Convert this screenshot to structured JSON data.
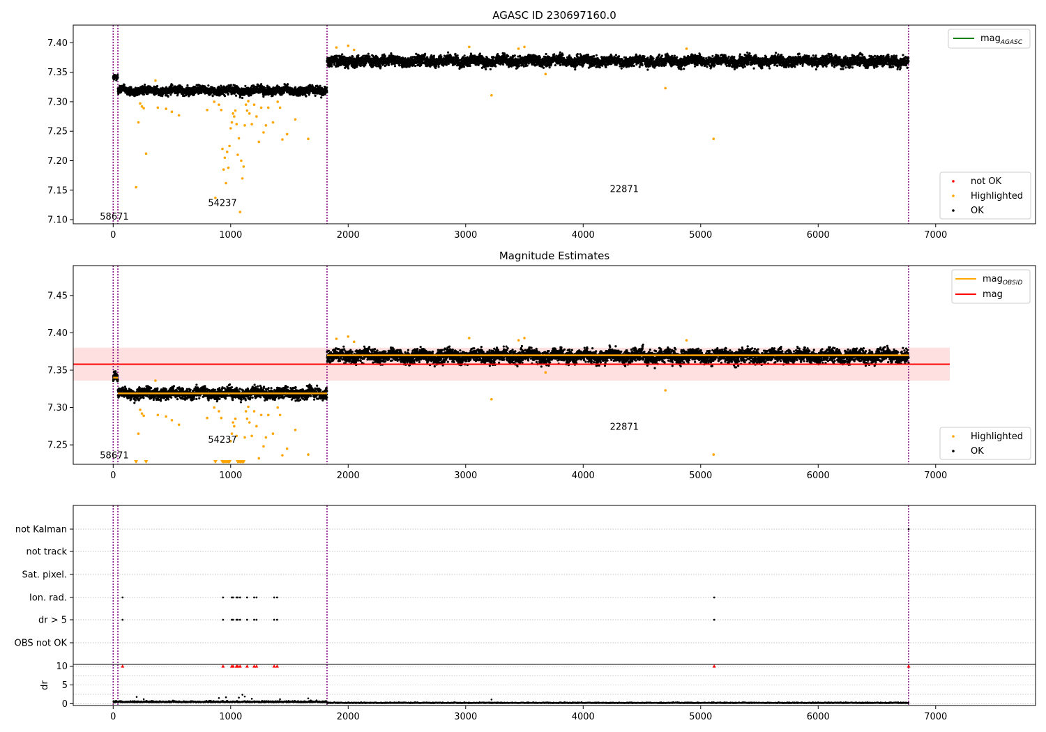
{
  "colors": {
    "ok": "#000000",
    "highlighted": "#ffa500",
    "not_ok": "#ff0000",
    "mag_agasc": "#008000",
    "mag_obsid": "#ffa500",
    "mag": "#ff0000",
    "mag_band": "#ffe0e0",
    "obsid_line": "#800080",
    "grid": "#b0b0b0"
  },
  "chart_data": [
    {
      "type": "scatter",
      "title": "AGASC ID 230697160.0",
      "xlabel": "",
      "ylabel": "",
      "xlim": [
        -340,
        7850
      ],
      "ylim": [
        7.093,
        7.43
      ],
      "xticks": [
        0,
        1000,
        2000,
        3000,
        4000,
        5000,
        6000,
        7000
      ],
      "yticks": [
        7.1,
        7.15,
        7.2,
        7.25,
        7.3,
        7.35,
        7.4
      ],
      "ytick_labels": [
        "7.10",
        "7.15",
        "7.20",
        "7.25",
        "7.30",
        "7.35",
        "7.40"
      ],
      "obsid_boundaries": [
        0,
        40,
        1820,
        6770
      ],
      "obsid_labels": [
        {
          "text": "58671",
          "x": 10,
          "y": 7.1
        },
        {
          "text": "54237",
          "x": 930,
          "y": 7.123
        },
        {
          "text": "22871",
          "x": 4350,
          "y": 7.147
        }
      ],
      "legends": {
        "top_right": [
          {
            "label_main": "mag",
            "label_sub": "AGASC",
            "kind": "line",
            "color_key": "mag_agasc"
          }
        ],
        "bottom_right": [
          {
            "label": "not OK",
            "kind": "dot",
            "color_key": "not_ok"
          },
          {
            "label": "Highlighted",
            "kind": "dot",
            "color_key": "highlighted"
          },
          {
            "label": "OK",
            "kind": "dot",
            "color_key": "ok"
          }
        ]
      },
      "segments": [
        {
          "x": [
            0,
            40
          ],
          "mean": 7.34,
          "spread": 0.004
        },
        {
          "x": [
            40,
            1820
          ],
          "mean": 7.319,
          "spread": 0.005
        },
        {
          "x": [
            1820,
            6770
          ],
          "mean": 7.369,
          "spread": 0.006
        }
      ],
      "highlighted_points": [
        [
          195,
          7.155
        ],
        [
          215,
          7.265
        ],
        [
          230,
          7.297
        ],
        [
          245,
          7.292
        ],
        [
          260,
          7.289
        ],
        [
          280,
          7.212
        ],
        [
          360,
          7.336
        ],
        [
          380,
          7.29
        ],
        [
          450,
          7.288
        ],
        [
          500,
          7.283
        ],
        [
          560,
          7.277
        ],
        [
          800,
          7.286
        ],
        [
          860,
          7.3
        ],
        [
          870,
          7.137
        ],
        [
          900,
          7.295
        ],
        [
          920,
          7.286
        ],
        [
          930,
          7.22
        ],
        [
          940,
          7.185
        ],
        [
          950,
          7.205
        ],
        [
          960,
          7.162
        ],
        [
          970,
          7.215
        ],
        [
          980,
          7.188
        ],
        [
          990,
          7.225
        ],
        [
          1000,
          7.255
        ],
        [
          1010,
          7.265
        ],
        [
          1020,
          7.28
        ],
        [
          1030,
          7.275
        ],
        [
          1040,
          7.285
        ],
        [
          1050,
          7.262
        ],
        [
          1060,
          7.21
        ],
        [
          1070,
          7.238
        ],
        [
          1080,
          7.113
        ],
        [
          1090,
          7.2
        ],
        [
          1100,
          7.17
        ],
        [
          1110,
          7.19
        ],
        [
          1120,
          7.26
        ],
        [
          1130,
          7.295
        ],
        [
          1140,
          7.285
        ],
        [
          1150,
          7.301
        ],
        [
          1160,
          7.28
        ],
        [
          1180,
          7.262
        ],
        [
          1200,
          7.295
        ],
        [
          1220,
          7.275
        ],
        [
          1240,
          7.232
        ],
        [
          1260,
          7.29
        ],
        [
          1280,
          7.248
        ],
        [
          1300,
          7.26
        ],
        [
          1320,
          7.29
        ],
        [
          1360,
          7.265
        ],
        [
          1400,
          7.3
        ],
        [
          1420,
          7.29
        ],
        [
          1440,
          7.236
        ],
        [
          1480,
          7.245
        ],
        [
          1550,
          7.27
        ],
        [
          1660,
          7.237
        ],
        [
          1900,
          7.392
        ],
        [
          2000,
          7.395
        ],
        [
          2050,
          7.388
        ],
        [
          3030,
          7.393
        ],
        [
          3220,
          7.311
        ],
        [
          3450,
          7.39
        ],
        [
          3500,
          7.393
        ],
        [
          3680,
          7.347
        ],
        [
          4700,
          7.323
        ],
        [
          4880,
          7.39
        ],
        [
          5110,
          7.237
        ]
      ],
      "not_ok_points": []
    },
    {
      "type": "scatter",
      "title": "Magnitude Estimates",
      "xlabel": "",
      "ylabel": "",
      "xlim": [
        -340,
        7850
      ],
      "ylim": [
        7.224,
        7.49
      ],
      "xticks": [
        0,
        1000,
        2000,
        3000,
        4000,
        5000,
        6000,
        7000
      ],
      "yticks": [
        7.25,
        7.3,
        7.35,
        7.4,
        7.45
      ],
      "ytick_labels": [
        "7.25",
        "7.30",
        "7.35",
        "7.40",
        "7.45"
      ],
      "obsid_boundaries": [
        0,
        40,
        1820,
        6770
      ],
      "obsid_labels": [
        {
          "text": "58671",
          "x": 10,
          "y": 7.232
        },
        {
          "text": "54237",
          "x": 930,
          "y": 7.253
        },
        {
          "text": "22871",
          "x": 4350,
          "y": 7.27
        }
      ],
      "mag": {
        "value": 7.358,
        "band": [
          7.336,
          7.38
        ],
        "x": [
          -340,
          7120
        ]
      },
      "mag_obsid": [
        {
          "x": [
            0,
            40
          ],
          "value": 7.34
        },
        {
          "x": [
            40,
            1820
          ],
          "value": 7.319
        },
        {
          "x": [
            1820,
            6770
          ],
          "value": 7.37
        }
      ],
      "legends": {
        "top_right": [
          {
            "label_main": "mag",
            "label_sub": "OBSID",
            "kind": "line",
            "color_key": "mag_obsid"
          },
          {
            "label_main": "mag",
            "label_sub": "",
            "kind": "line",
            "color_key": "mag"
          }
        ],
        "bottom_right": [
          {
            "label": "Highlighted",
            "kind": "dot",
            "color_key": "highlighted"
          },
          {
            "label": "OK",
            "kind": "dot",
            "color_key": "ok"
          }
        ]
      },
      "segments": [
        {
          "x": [
            0,
            40
          ],
          "mean": 7.34,
          "spread": 0.004
        },
        {
          "x": [
            40,
            1820
          ],
          "mean": 7.319,
          "spread": 0.005
        },
        {
          "x": [
            1820,
            6770
          ],
          "mean": 7.369,
          "spread": 0.006
        }
      ],
      "highlighted_points": [
        [
          215,
          7.265
        ],
        [
          230,
          7.297
        ],
        [
          245,
          7.292
        ],
        [
          260,
          7.289
        ],
        [
          360,
          7.336
        ],
        [
          380,
          7.29
        ],
        [
          450,
          7.288
        ],
        [
          500,
          7.283
        ],
        [
          560,
          7.277
        ],
        [
          800,
          7.286
        ],
        [
          860,
          7.3
        ],
        [
          900,
          7.295
        ],
        [
          920,
          7.286
        ],
        [
          1000,
          7.255
        ],
        [
          1010,
          7.265
        ],
        [
          1020,
          7.28
        ],
        [
          1030,
          7.275
        ],
        [
          1040,
          7.285
        ],
        [
          1050,
          7.262
        ],
        [
          1120,
          7.26
        ],
        [
          1130,
          7.295
        ],
        [
          1140,
          7.285
        ],
        [
          1150,
          7.301
        ],
        [
          1160,
          7.28
        ],
        [
          1180,
          7.262
        ],
        [
          1200,
          7.295
        ],
        [
          1220,
          7.275
        ],
        [
          1240,
          7.232
        ],
        [
          1260,
          7.29
        ],
        [
          1280,
          7.248
        ],
        [
          1300,
          7.26
        ],
        [
          1320,
          7.29
        ],
        [
          1360,
          7.265
        ],
        [
          1400,
          7.3
        ],
        [
          1420,
          7.29
        ],
        [
          1440,
          7.236
        ],
        [
          1480,
          7.245
        ],
        [
          1550,
          7.27
        ],
        [
          1660,
          7.237
        ],
        [
          1900,
          7.392
        ],
        [
          2000,
          7.395
        ],
        [
          2050,
          7.388
        ],
        [
          3030,
          7.393
        ],
        [
          3220,
          7.311
        ],
        [
          3450,
          7.39
        ],
        [
          3500,
          7.393
        ],
        [
          3680,
          7.347
        ],
        [
          4700,
          7.323
        ],
        [
          4880,
          7.39
        ],
        [
          5110,
          7.237
        ]
      ],
      "clipped_points_x": [
        195,
        280,
        870,
        930,
        940,
        950,
        960,
        970,
        980,
        990,
        1060,
        1070,
        1080,
        1090,
        1100,
        1110
      ]
    },
    {
      "type": "scatter",
      "title": "",
      "xlabel": "",
      "ylabel": "",
      "xlim": [
        -340,
        7850
      ],
      "flag_rows": [
        "not Kalman",
        "not track",
        "Sat. pixel.",
        "Ion. rad.",
        "dr > 5",
        "OBS not OK"
      ],
      "flag_points": {
        "Ion. rad.": [
          80,
          935,
          1010,
          1020,
          1050,
          1060,
          1080,
          1140,
          1200,
          1220,
          1370,
          1395,
          5115
        ],
        "dr > 5": [
          80,
          935,
          1010,
          1020,
          1050,
          1060,
          1080,
          1140,
          1200,
          1220,
          1370,
          1395,
          5115
        ],
        "not Kalman": [
          6770
        ]
      }
    },
    {
      "type": "scatter",
      "title": "",
      "xlabel": "",
      "ylabel": "dr",
      "xlim": [
        -340,
        7850
      ],
      "ylim": [
        -0.5,
        10.5
      ],
      "xticks": [
        0,
        1000,
        2000,
        3000,
        4000,
        5000,
        6000,
        7000
      ],
      "yticks": [
        0,
        5,
        10
      ],
      "ytick_labels": [
        "0",
        "5",
        "10"
      ],
      "clipped_points_x": [
        80,
        935,
        1010,
        1020,
        1050,
        1060,
        1080,
        1140,
        1200,
        1220,
        1370,
        1395,
        5115,
        6770
      ],
      "spikes": [
        [
          200,
          1.8
        ],
        [
          260,
          1.2
        ],
        [
          900,
          1.5
        ],
        [
          960,
          1.7
        ],
        [
          1070,
          1.6
        ],
        [
          1100,
          2.4
        ],
        [
          1120,
          1.9
        ],
        [
          1180,
          1.3
        ],
        [
          1420,
          1.2
        ],
        [
          1660,
          1.4
        ],
        [
          3220,
          1.1
        ]
      ]
    }
  ]
}
